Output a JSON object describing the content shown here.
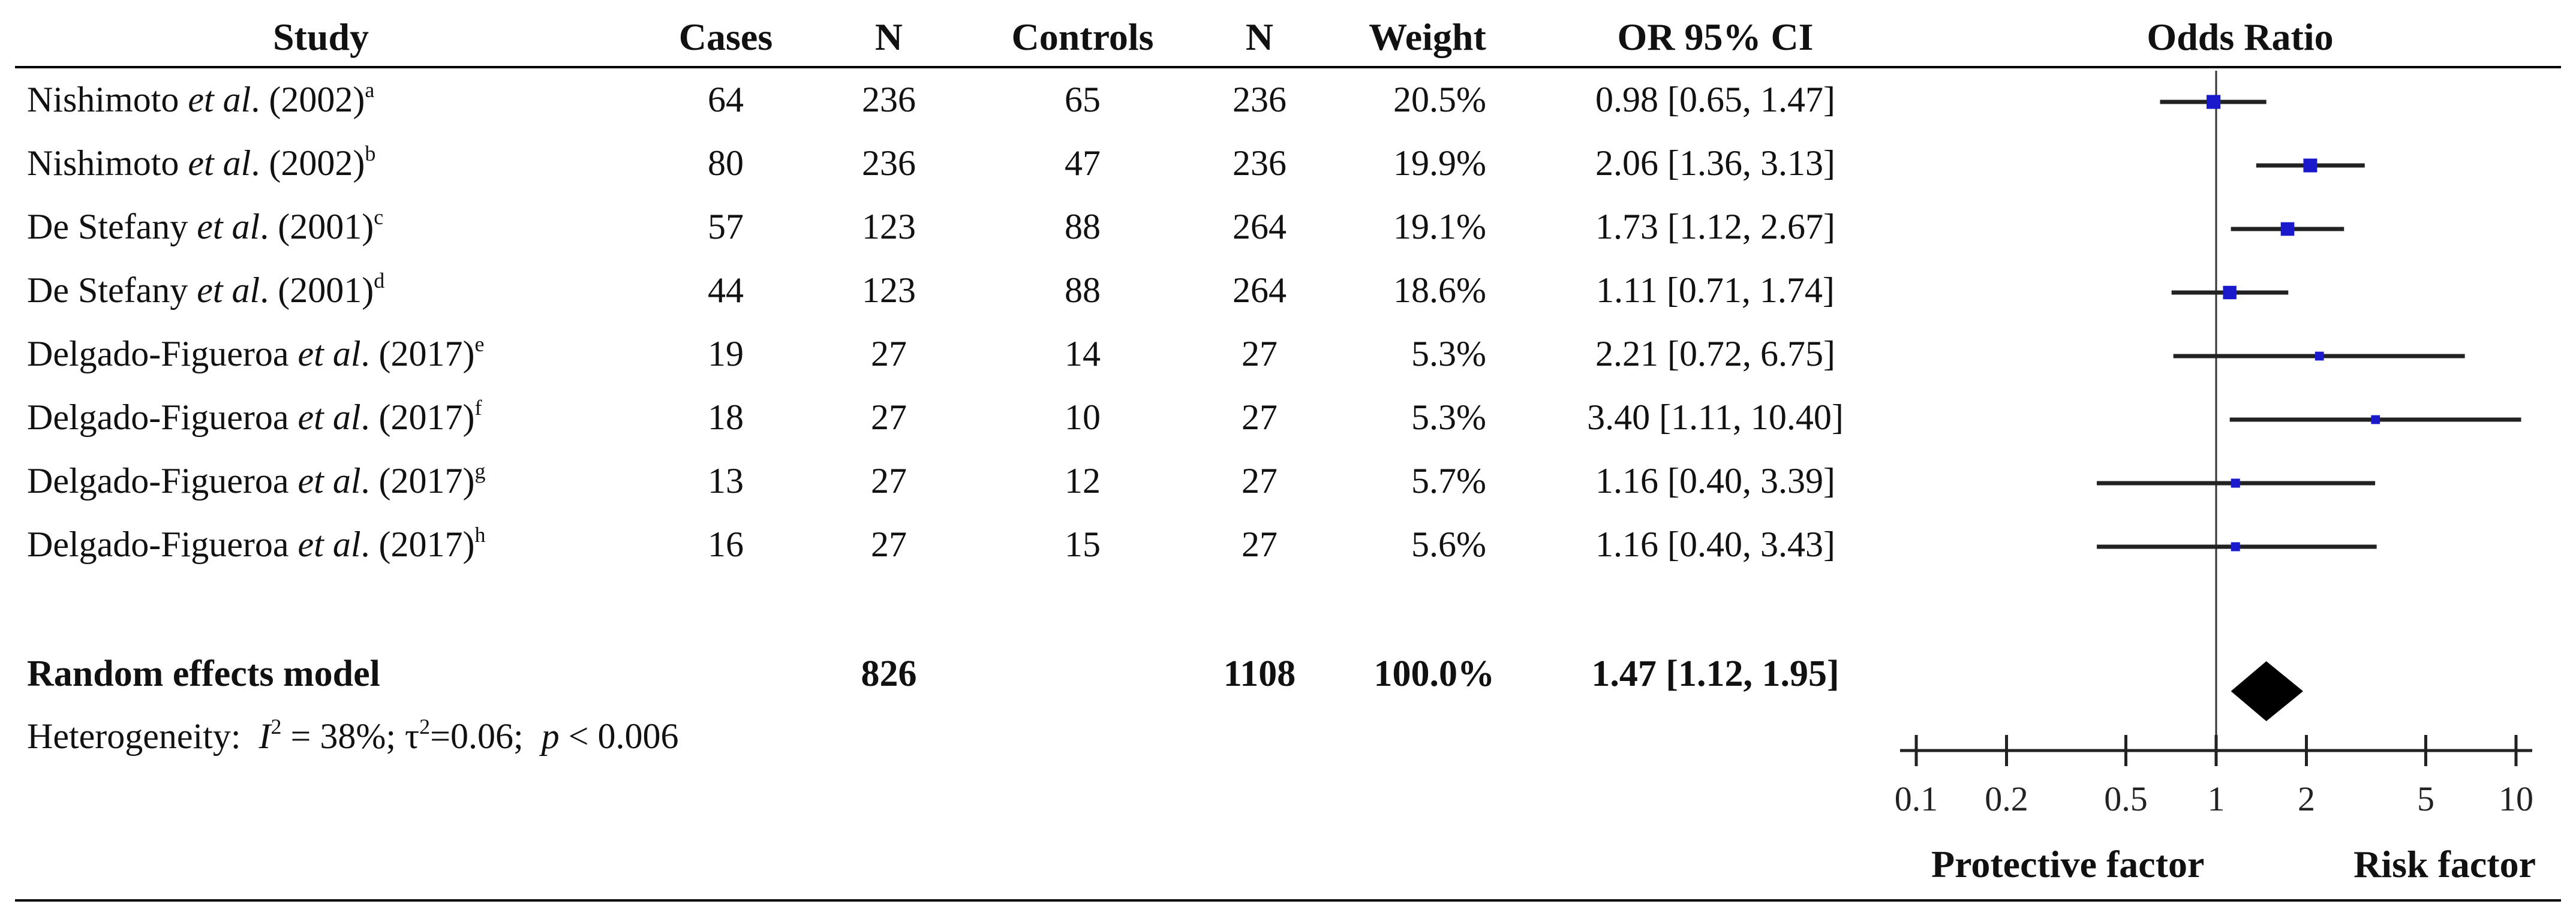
{
  "chart_data": {
    "type": "forest",
    "headers": {
      "study": "Study",
      "cases": "Cases",
      "n1": "N",
      "controls": "Controls",
      "n2": "N",
      "weight": "Weight",
      "or_ci": "OR 95% CI",
      "plot": "Odds Ratio"
    },
    "studies": [
      {
        "author": "Nishimoto",
        "etal": "et al",
        "year": ". (2002)",
        "note": "a",
        "cases": "64",
        "n1": "236",
        "controls": "65",
        "n2": "236",
        "weight": "20.5%",
        "ci_text": "0.98 [0.65, 1.47]",
        "or": 0.98,
        "lower": 0.65,
        "upper": 1.47,
        "w": 20.5
      },
      {
        "author": "Nishimoto",
        "etal": "et al",
        "year": ". (2002)",
        "note": "b",
        "cases": "80",
        "n1": "236",
        "controls": "47",
        "n2": "236",
        "weight": "19.9%",
        "ci_text": "2.06 [1.36, 3.13]",
        "or": 2.06,
        "lower": 1.36,
        "upper": 3.13,
        "w": 19.9
      },
      {
        "author": "De Stefany",
        "etal": "et al",
        "year": ". (2001)",
        "note": "c",
        "cases": "57",
        "n1": "123",
        "controls": "88",
        "n2": "264",
        "weight": "19.1%",
        "ci_text": "1.73 [1.12, 2.67]",
        "or": 1.73,
        "lower": 1.12,
        "upper": 2.67,
        "w": 19.1
      },
      {
        "author": "De Stefany",
        "etal": "et al",
        "year": ". (2001)",
        "note": "d",
        "cases": "44",
        "n1": "123",
        "controls": "88",
        "n2": "264",
        "weight": "18.6%",
        "ci_text": "1.11 [0.71, 1.74]",
        "or": 1.11,
        "lower": 0.71,
        "upper": 1.74,
        "w": 18.6
      },
      {
        "author": "Delgado-Figueroa",
        "etal": "et al",
        "year": ". (2017)",
        "note": "e",
        "cases": "19",
        "n1": "27",
        "controls": "14",
        "n2": "27",
        "weight": "5.3%",
        "ci_text": "2.21 [0.72, 6.75]",
        "or": 2.21,
        "lower": 0.72,
        "upper": 6.75,
        "w": 5.3
      },
      {
        "author": "Delgado-Figueroa",
        "etal": "et al",
        "year": ". (2017)",
        "note": "f",
        "cases": "18",
        "n1": "27",
        "controls": "10",
        "n2": "27",
        "weight": "5.3%",
        "ci_text": "3.40 [1.11, 10.40]",
        "or": 3.4,
        "lower": 1.11,
        "upper": 10.4,
        "w": 5.3
      },
      {
        "author": "Delgado-Figueroa",
        "etal": "et al",
        "year": ". (2017)",
        "note": "g",
        "cases": "13",
        "n1": "27",
        "controls": "12",
        "n2": "27",
        "weight": "5.7%",
        "ci_text": "1.16 [0.40, 3.39]",
        "or": 1.16,
        "lower": 0.4,
        "upper": 3.39,
        "w": 5.7
      },
      {
        "author": "Delgado-Figueroa",
        "etal": "et al",
        "year": ". (2017)",
        "note": "h",
        "cases": "16",
        "n1": "27",
        "controls": "15",
        "n2": "27",
        "weight": "5.6%",
        "ci_text": "1.16 [0.40, 3.43]",
        "or": 1.16,
        "lower": 0.4,
        "upper": 3.43,
        "w": 5.6
      }
    ],
    "summary": {
      "label": "Random effects model",
      "n1": "826",
      "n2": "1108",
      "weight": "100.0%",
      "ci_text": "1.47 [1.12, 1.95]",
      "or": 1.47,
      "lower": 1.12,
      "upper": 1.95
    },
    "heterogeneity": {
      "prefix": "Heterogeneity:",
      "i2_symbol": "I",
      "i2_sup": "2",
      "i2_value": " = 38%;",
      "tau_symbol": "τ",
      "tau_sup": "2",
      "tau_value": "=0.06;",
      "p_symbol": "p",
      "p_value": " < 0.006"
    },
    "axis": {
      "scale": "log",
      "range": [
        0.1,
        10
      ],
      "ticks": [
        0.1,
        0.2,
        0.5,
        1,
        2,
        5,
        10
      ],
      "tick_labels": [
        "0.1",
        "0.2",
        "0.5",
        "1",
        "2",
        "5",
        "10"
      ],
      "reference": 1,
      "left_label": "Protective factor",
      "right_label": "Risk factor"
    },
    "colors": {
      "marker": "#1a1acc",
      "summary": "#000000",
      "lines": "#222222"
    }
  }
}
